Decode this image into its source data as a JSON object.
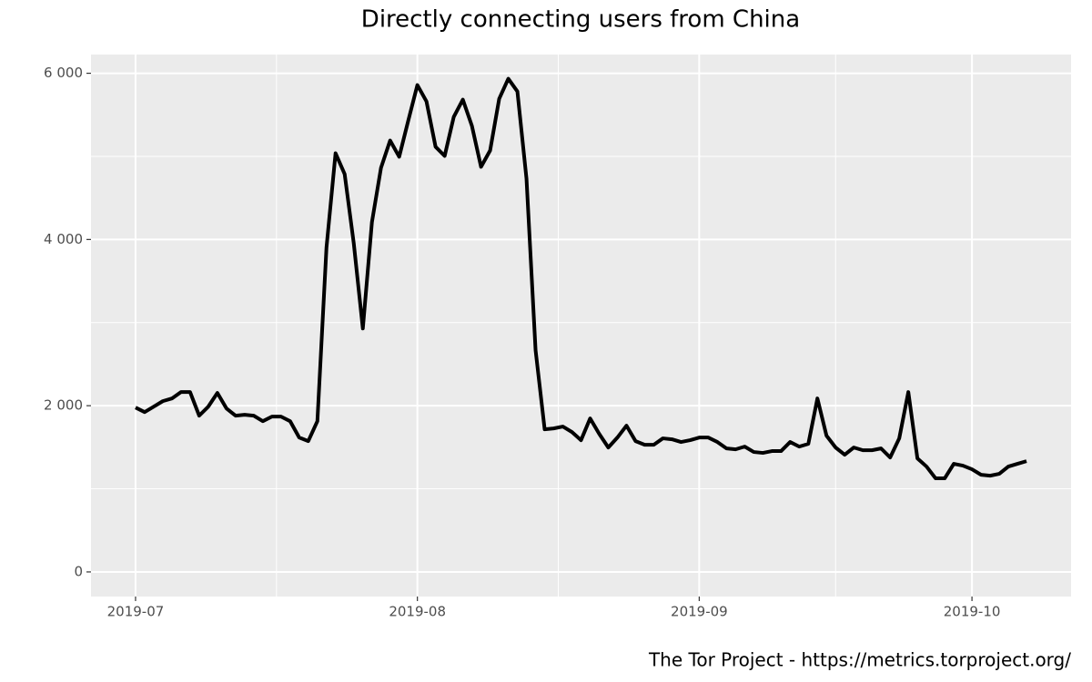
{
  "chart_data": {
    "type": "line",
    "title": "Directly connecting users from China",
    "caption": "The Tor Project - https://metrics.torproject.org/",
    "categories": [
      "2019-07",
      null,
      null,
      null,
      null,
      null,
      null,
      null,
      null,
      null,
      null,
      null,
      null,
      null,
      null,
      null,
      null,
      null,
      null,
      null,
      null,
      null,
      null,
      null,
      null,
      null,
      null,
      null,
      null,
      null,
      null,
      "2019-08",
      null,
      null,
      null,
      null,
      null,
      null,
      null,
      null,
      null,
      null,
      null,
      null,
      null,
      null,
      null,
      null,
      null,
      null,
      null,
      null,
      null,
      null,
      null,
      null,
      null,
      null,
      null,
      null,
      null,
      null,
      "2019-09",
      null,
      null,
      null,
      null,
      null,
      null,
      null,
      null,
      null,
      null,
      null,
      null,
      null,
      null,
      null,
      null,
      null,
      null,
      null,
      null,
      null,
      null,
      null,
      null,
      null,
      null,
      null,
      null,
      null,
      "2019-10",
      null,
      null,
      null,
      null,
      null,
      null
    ],
    "series": [
      {
        "name": "users",
        "color": "#000000",
        "values": [
          1978,
          1923,
          1989,
          2055,
          2087,
          2164,
          2164,
          1880,
          1989,
          2153,
          1967,
          1880,
          1891,
          1880,
          1814,
          1869,
          1869,
          1814,
          1617,
          1574,
          1814,
          3902,
          5038,
          4787,
          3956,
          2929,
          4208,
          4863,
          5191,
          4995,
          5432,
          5858,
          5661,
          5115,
          5005,
          5475,
          5683,
          5366,
          4874,
          5071,
          5694,
          5934,
          5781,
          4732,
          2667,
          1716,
          1727,
          1749,
          1683,
          1585,
          1847,
          1661,
          1497,
          1617,
          1760,
          1574,
          1530,
          1530,
          1607,
          1596,
          1563,
          1585,
          1617,
          1617,
          1563,
          1486,
          1475,
          1508,
          1443,
          1432,
          1454,
          1454,
          1563,
          1508,
          1541,
          2087,
          1639,
          1497,
          1410,
          1497,
          1464,
          1464,
          1486,
          1377,
          1607,
          2164,
          1366,
          1268,
          1126,
          1126,
          1301,
          1279,
          1235,
          1169,
          1158,
          1180,
          1268,
          1301,
          1333
        ]
      }
    ],
    "ylim": [
      -296,
      6225
    ],
    "yticks": [
      0,
      {
        "value": 2000,
        "label": "2 000"
      },
      {
        "value": 4000,
        "label": "4 000"
      },
      {
        "value": 6000,
        "label": "6 000"
      }
    ],
    "grid": true
  }
}
